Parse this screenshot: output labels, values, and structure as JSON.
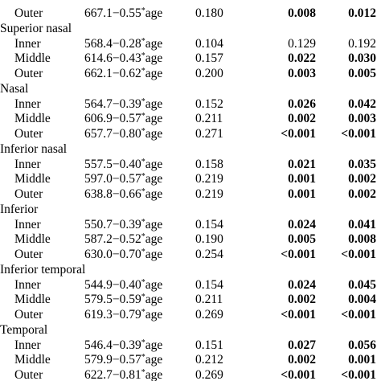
{
  "table": {
    "groups": [
      {
        "rows": [
          {
            "label": "Outer",
            "equation": [
              "667.1−0.55",
              "*",
              "age"
            ],
            "r": "0.180",
            "p1": "0.008",
            "p2": "0.012",
            "bold": [
              true,
              true
            ]
          }
        ]
      },
      {
        "name": "Superior nasal",
        "rows": [
          {
            "label": "Inner",
            "equation": [
              "568.4−0.28",
              "*",
              "age"
            ],
            "r": "0.104",
            "p1": "0.129",
            "p2": "0.192",
            "bold": [
              false,
              false
            ]
          },
          {
            "label": "Middle",
            "equation": [
              "614.6−0.43",
              "*",
              "age"
            ],
            "r": "0.157",
            "p1": "0.022",
            "p2": "0.030",
            "bold": [
              true,
              true
            ]
          },
          {
            "label": "Outer",
            "equation": [
              "662.1−0.62",
              "*",
              "age"
            ],
            "r": "0.200",
            "p1": "0.003",
            "p2": "0.005",
            "bold": [
              true,
              true
            ]
          }
        ]
      },
      {
        "name": "Nasal",
        "rows": [
          {
            "label": "Inner",
            "equation": [
              "564.7−0.39",
              "*",
              "age"
            ],
            "r": "0.152",
            "p1": "0.026",
            "p2": "0.042",
            "bold": [
              true,
              true
            ]
          },
          {
            "label": "Middle",
            "equation": [
              "606.9−0.57",
              "*",
              "age"
            ],
            "r": "0.211",
            "p1": "0.002",
            "p2": "0.003",
            "bold": [
              true,
              true
            ]
          },
          {
            "label": "Outer",
            "equation": [
              "657.7−0.80",
              "*",
              "age"
            ],
            "r": "0.271",
            "p1": "<0.001",
            "p2": "<0.001",
            "bold": [
              true,
              true
            ]
          }
        ]
      },
      {
        "name": "Inferior nasal",
        "rows": [
          {
            "label": "Inner",
            "equation": [
              "557.5−0.40",
              "*",
              "age"
            ],
            "r": "0.158",
            "p1": "0.021",
            "p2": "0.035",
            "bold": [
              true,
              true
            ]
          },
          {
            "label": "Middle",
            "equation": [
              "597.0−0.57",
              "*",
              "age"
            ],
            "r": "0.219",
            "p1": "0.001",
            "p2": "0.002",
            "bold": [
              true,
              true
            ]
          },
          {
            "label": "Outer",
            "equation": [
              "638.8−0.66",
              "*",
              "age"
            ],
            "r": "0.219",
            "p1": "0.001",
            "p2": "0.002",
            "bold": [
              true,
              true
            ]
          }
        ]
      },
      {
        "name": "Inferior",
        "rows": [
          {
            "label": "Inner",
            "equation": [
              "550.7−0.39",
              "*",
              "age"
            ],
            "r": "0.154",
            "p1": "0.024",
            "p2": "0.041",
            "bold": [
              true,
              true
            ]
          },
          {
            "label": "Middle",
            "equation": [
              "587.2−0.52",
              "*",
              "age"
            ],
            "r": "0.190",
            "p1": "0.005",
            "p2": "0.008",
            "bold": [
              true,
              true
            ]
          },
          {
            "label": "Outer",
            "equation": [
              "630.0−0.70",
              "*",
              "age"
            ],
            "r": "0.254",
            "p1": "<0.001",
            "p2": "<0.001",
            "bold": [
              true,
              true
            ]
          }
        ]
      },
      {
        "name": "Inferior temporal",
        "rows": [
          {
            "label": "Inner",
            "equation": [
              "544.9−0.40",
              "*",
              "age"
            ],
            "r": "0.154",
            "p1": "0.024",
            "p2": "0.045",
            "bold": [
              true,
              true
            ]
          },
          {
            "label": "Middle",
            "equation": [
              "579.5−0.59",
              "*",
              "age"
            ],
            "r": "0.211",
            "p1": "0.002",
            "p2": "0.004",
            "bold": [
              true,
              true
            ]
          },
          {
            "label": "Outer",
            "equation": [
              "619.3−0.79",
              "*",
              "age"
            ],
            "r": "0.269",
            "p1": "<0.001",
            "p2": "<0.001",
            "bold": [
              true,
              true
            ]
          }
        ]
      },
      {
        "name": "Temporal",
        "rows": [
          {
            "label": "Inner",
            "equation": [
              "546.4−0.39",
              "*",
              "age"
            ],
            "r": "0.151",
            "p1": "0.027",
            "p2": "0.056",
            "bold": [
              true,
              true
            ]
          },
          {
            "label": "Middle",
            "equation": [
              "579.9−0.57",
              "*",
              "age"
            ],
            "r": "0.212",
            "p1": "0.002",
            "p2": "0.001",
            "bold": [
              true,
              true
            ]
          },
          {
            "label": "Outer",
            "equation": [
              "622.7−0.81",
              "*",
              "age"
            ],
            "r": "0.269",
            "p1": "<0.001",
            "p2": "<0.001",
            "bold": [
              true,
              true
            ]
          }
        ]
      }
    ]
  }
}
